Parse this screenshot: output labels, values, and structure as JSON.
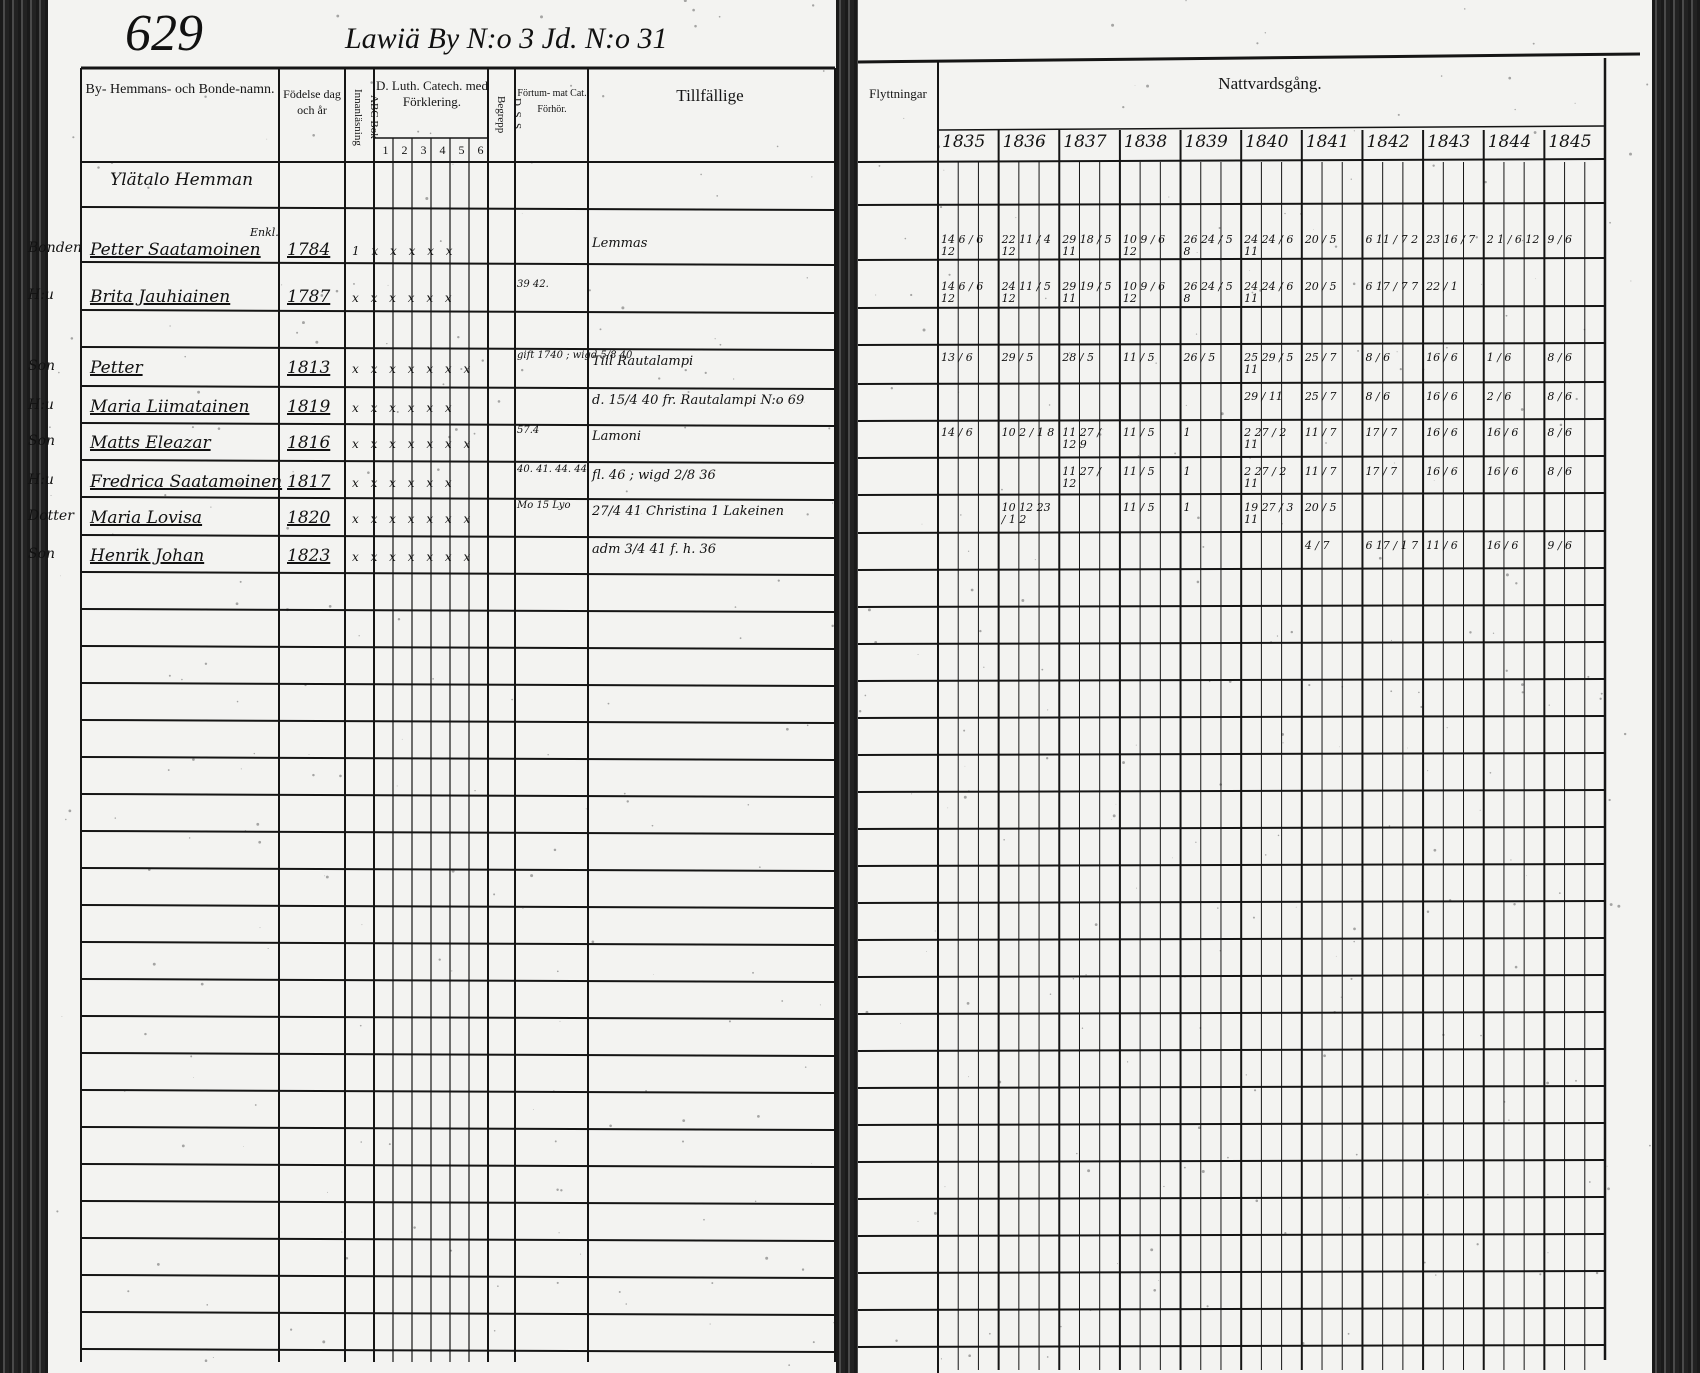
{
  "page_number": "629",
  "page_title": "Lawiä By N:o 3 Jd. N:o 31",
  "headers": {
    "name_col": "By- Hemmans- och Bonde-namn.",
    "birth_col": "Födelse dag och år",
    "abc_col": "ABC Bok Innanläsning",
    "catechism_col": "D. Luth. Catech. med Förklering.",
    "catechism_sub": [
      "1",
      "2",
      "3",
      "4",
      "5",
      "6"
    ],
    "dss_col": "D. S. S. Begrepp",
    "fortum_col": "Förtum- mat Cat. Förhör.",
    "tillfallige_col": "Tillfällige",
    "flyttningar_col": "Flyttningar",
    "nattvard_col": "Nattvardsgång.",
    "years": [
      "1835",
      "1836",
      "1837",
      "1838",
      "1839",
      "1840",
      "1841",
      "1842",
      "1843",
      "1844",
      "1845"
    ]
  },
  "household": "Ylätalo Hemman",
  "entries": [
    {
      "relation": "Bonden",
      "name": "Petter Saatamoinen",
      "note_above": "Enkl.",
      "birth": "1784",
      "catechism": "1 x x x x x",
      "fortum": "",
      "remark": "Lemmas",
      "communion": [
        "14 6 / 6 12",
        "22 11 / 4 12",
        "29 18 / 5 11",
        "10 9 / 6 12",
        "26 24 / 5 8",
        "24 24 / 6 11",
        "20 / 5",
        "6 11 / 7 2",
        "23 16 / 7",
        "2 1 / 6 12",
        "9 / 6"
      ]
    },
    {
      "relation": "H:u",
      "name": "Brita Jauhiainen",
      "note_above": "",
      "birth": "1787",
      "catechism": "x x x x x x",
      "fortum": "39 42.",
      "remark": "",
      "communion": [
        "14 6 / 6 12",
        "24 11 / 5 12",
        "29 19 / 5 11",
        "10 9 / 6 12",
        "26 24 / 5 8",
        "24 24 / 6 11",
        "20 / 5",
        "6 17 / 7 7",
        "22 / 1",
        "",
        ""
      ]
    },
    {
      "relation": "Son",
      "name": "Petter",
      "note_above": "",
      "birth": "1813",
      "catechism": "x x x x x x x",
      "fortum": "gift 1740 ; wigd 5/8 40",
      "remark": "Till Rautalampi",
      "communion": [
        "13 / 6",
        "29 / 5",
        "28 / 5",
        "11 / 5",
        "26 / 5",
        "25 29 / 5 11",
        "25 / 7",
        "8 / 6",
        "16 / 6",
        "1 / 6",
        "8 / 6"
      ]
    },
    {
      "relation": "H:u",
      "name": "Maria Liimatainen",
      "note_above": "",
      "birth": "1819",
      "catechism": "x x x x x x",
      "fortum": "",
      "remark": "d. 15/4 40 fr. Rautalampi N:o 69",
      "communion": [
        "",
        "",
        "",
        "",
        "",
        "29 / 11",
        "25 / 7",
        "8 / 6",
        "16 / 6",
        "2 / 6",
        "8 / 6"
      ]
    },
    {
      "relation": "Son",
      "name": "Matts Eleazar",
      "note_above": "",
      "birth": "1816",
      "catechism": "x x x x x x x",
      "fortum": "57.4",
      "remark": "Lamoni",
      "communion": [
        "14 / 6",
        "10 2 / 1 8",
        "11 27 / 12 9",
        "11 / 5",
        "1",
        "2 27 / 2 11",
        "11 / 7",
        "17 / 7",
        "16 / 6",
        "16 / 6",
        "8 / 6"
      ]
    },
    {
      "relation": "H:u",
      "name": "Fredrica Saatamoinen",
      "note_above": "",
      "birth": "1817",
      "catechism": "x x x x x x",
      "fortum": "40. 41. 44. 44",
      "remark": "fl. 46 ; wigd 2/8 36",
      "communion": [
        "",
        "",
        "11 27 / 12",
        "11 / 5",
        "1",
        "2 27 / 2 11",
        "11 / 7",
        "17 / 7",
        "16 / 6",
        "16 / 6",
        "8 / 6"
      ]
    },
    {
      "relation": "Dotter",
      "name": "Maria Lovisa",
      "note_above": "",
      "birth": "1820",
      "catechism": "x x x x x x x",
      "fortum": "Mo 15 Lyo",
      "remark": "27/4 41 Christina 1 Lakeinen",
      "communion": [
        "",
        "10 12 23 / 1 2",
        "",
        "11 / 5",
        "1",
        "19 27 / 3 11",
        "20 / 5",
        "",
        "",
        "",
        ""
      ]
    },
    {
      "relation": "Son",
      "name": "Henrik Johan",
      "note_above": "",
      "birth": "1823",
      "catechism": "x x x x x x x",
      "fortum": "",
      "remark": "adm 3/4 41 f. h. 36",
      "communion": [
        "",
        "",
        "",
        "",
        "",
        "",
        "4 / 7",
        "6 17 / 1 7",
        "11 / 6",
        "16 / 6",
        "9 / 6"
      ]
    }
  ]
}
